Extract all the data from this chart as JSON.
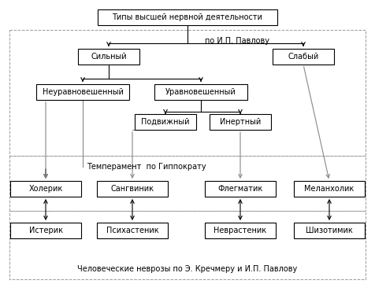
{
  "title": "Типы высшей нервной деятельности",
  "silny": "Сильный",
  "slaby": "Слабый",
  "neuravnoveshenny": "Неуравновешенный",
  "uravnoveshenny": "Уравновешенный",
  "podvizhny": "Подвижный",
  "inerny": "Инертный",
  "pavlov_label": "по И.П. Павлову",
  "temperament_label": "Темперамент  по Гиппократу",
  "kholerik": "Холерик",
  "sangvinik": "Сангвиник",
  "flegmatik": "Флегматик",
  "melanholik": "Меланхолик",
  "isterik": "Истерик",
  "psikhasthenik": "Психастеник",
  "nevrasthenik": "Неврастеник",
  "shizotimik": "Шизотимик",
  "nevroz_label": "Человеческие неврозы по Э. Кречмеру и И.П. Павлову",
  "bg_color": "#ffffff",
  "box_color": "#ffffff",
  "box_edge": "#000000",
  "text_color": "#000000",
  "arrow_color": "#000000",
  "line_color": "#888888",
  "dashed_box_color": "#999999",
  "font_size": 7.0
}
